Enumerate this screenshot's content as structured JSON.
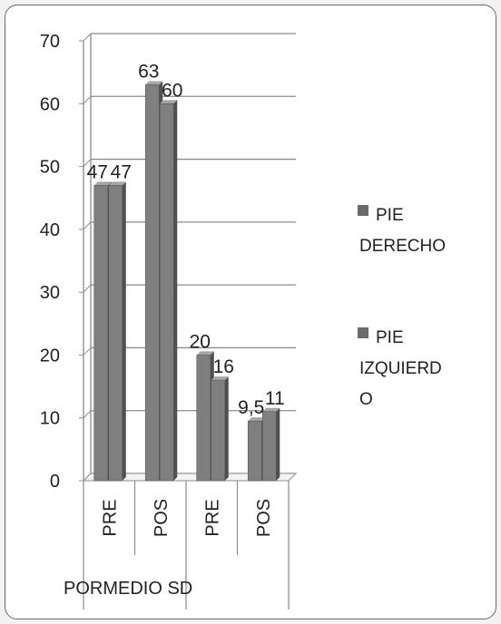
{
  "chart_data": {
    "type": "bar",
    "style": "3d-clustered-column",
    "group_label": "PORMEDIO SD",
    "categories": [
      "PRE",
      "POS",
      "PRE",
      "POS"
    ],
    "series": [
      {
        "name": "PIE DERECHO",
        "values": [
          47,
          63,
          20,
          9.5
        ],
        "labels": [
          "47",
          "63",
          "20",
          "9,5"
        ]
      },
      {
        "name": "PIE IZQUIERDO",
        "values": [
          47,
          60,
          16,
          11
        ],
        "labels": [
          "47",
          "60",
          "16",
          "11"
        ]
      }
    ],
    "ylim": [
      0,
      70
    ],
    "yticks": [
      0,
      10,
      20,
      30,
      40,
      50,
      60,
      70
    ],
    "grid": true,
    "legend_position": "right",
    "legend_lines": [
      [
        "PIE",
        "DERECHO"
      ],
      [
        "PIE",
        "IZQUIERD",
        "O"
      ]
    ],
    "colors": {
      "bar_front": "#7f7f7f",
      "bar_side": "#4f4f4f",
      "bar_top": "#a6a6a6",
      "grid": "#8c8c8c",
      "legend_swatch": "#6b6b6b"
    }
  }
}
